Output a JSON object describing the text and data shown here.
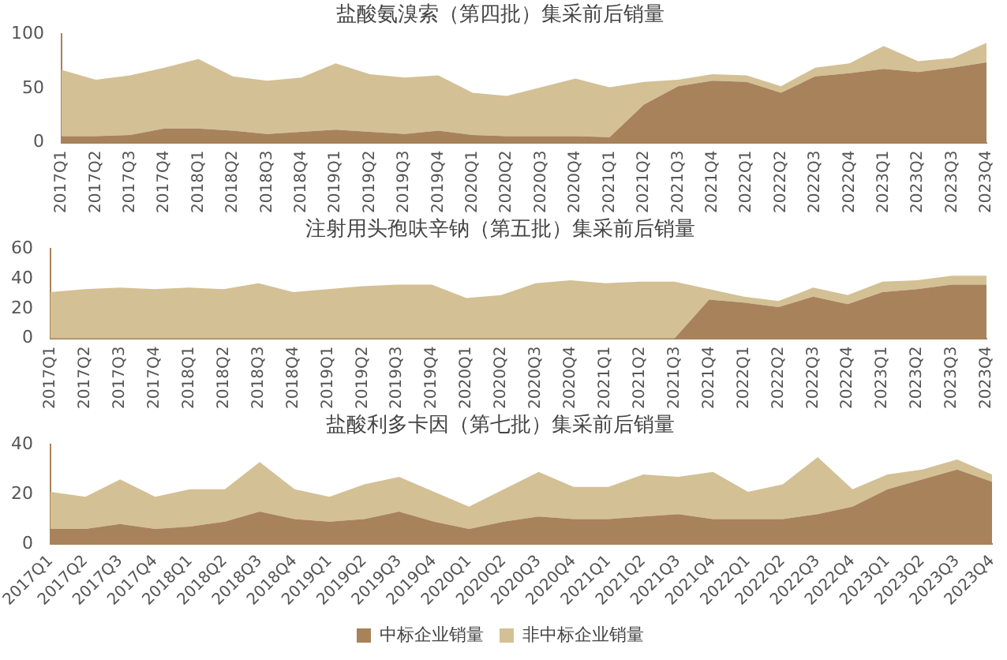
{
  "chart_data": [
    {
      "type": "area",
      "title": "盐酸氨溴索（第四批）集采前后销量",
      "stacked": true,
      "legend": false,
      "grid": false,
      "marker": "none",
      "categories": [
        "2017Q1",
        "2017Q2",
        "2017Q3",
        "2017Q4",
        "2018Q1",
        "2018Q2",
        "2018Q3",
        "2018Q4",
        "2019Q1",
        "2019Q2",
        "2019Q3",
        "2019Q4",
        "2020Q1",
        "2020Q2",
        "2020Q3",
        "2020Q4",
        "2021Q1",
        "2021Q2",
        "2021Q3",
        "2021Q4",
        "2022Q1",
        "2022Q2",
        "2022Q3",
        "2022Q4",
        "2023Q1",
        "2023Q2",
        "2023Q3",
        "2023Q4"
      ],
      "ylim": [
        0,
        100
      ],
      "yticks": [
        0,
        50,
        100
      ],
      "series": [
        {
          "color": "#a8825a",
          "values": [
            6,
            6,
            7,
            13,
            13,
            11,
            8,
            10,
            12,
            10,
            8,
            11,
            7,
            6,
            6,
            6,
            5,
            35,
            52,
            57,
            56,
            46,
            61,
            64,
            68,
            65,
            69,
            74
          ]
        },
        {
          "color": "#d4c095",
          "values": [
            61,
            52,
            55,
            56,
            64,
            50,
            49,
            50,
            61,
            53,
            52,
            51,
            39,
            37,
            45,
            53,
            46,
            21,
            6,
            6,
            6,
            6,
            8,
            9,
            21,
            10,
            9,
            18
          ]
        }
      ]
    },
    {
      "type": "area",
      "title": "注射用头孢呋辛钠（第五批）集采前后销量",
      "stacked": true,
      "legend": false,
      "grid": false,
      "marker": "none",
      "categories": [
        "2017Q1",
        "2017Q2",
        "2017Q3",
        "2017Q4",
        "2018Q1",
        "2018Q2",
        "2018Q3",
        "2018Q4",
        "2019Q1",
        "2019Q2",
        "2019Q3",
        "2019Q4",
        "2020Q1",
        "2020Q2",
        "2020Q3",
        "2020Q4",
        "2021Q1",
        "2021Q2",
        "2021Q3",
        "2021Q4",
        "2022Q1",
        "2022Q2",
        "2022Q3",
        "2022Q4",
        "2023Q1",
        "2023Q2",
        "2023Q3",
        "2023Q4"
      ],
      "ylim": [
        0,
        60
      ],
      "yticks": [
        0,
        20,
        40,
        60
      ],
      "series": [
        {
          "color": "#a8825a",
          "values": [
            0,
            0,
            0,
            0,
            0,
            0,
            0,
            0,
            0,
            0,
            0,
            0,
            0,
            0,
            0,
            0,
            0,
            0,
            0,
            26,
            24,
            21,
            28,
            23,
            31,
            33,
            36,
            36
          ]
        },
        {
          "color": "#d4c095",
          "values": [
            31,
            33,
            34,
            33,
            34,
            33,
            37,
            31,
            33,
            35,
            36,
            36,
            27,
            29,
            37,
            39,
            37,
            38,
            38,
            7,
            4,
            4,
            6,
            6,
            7,
            6,
            6,
            6
          ]
        }
      ]
    },
    {
      "type": "area",
      "title": "盐酸利多卡因（第七批）集采前后销量",
      "stacked": true,
      "legend": "bottom",
      "grid": false,
      "marker": "none",
      "categories": [
        "2017Q1",
        "2017Q2",
        "2017Q3",
        "2017Q4",
        "2018Q1",
        "2018Q2",
        "2018Q3",
        "2018Q4",
        "2019Q1",
        "2019Q2",
        "2019Q3",
        "2019Q4",
        "2020Q1",
        "2020Q2",
        "2020Q3",
        "2020Q4",
        "2021Q1",
        "2021Q2",
        "2021Q3",
        "2021Q4",
        "2022Q1",
        "2022Q2",
        "2022Q3",
        "2022Q4",
        "2023Q1",
        "2023Q2",
        "2023Q3",
        "2023Q4"
      ],
      "ylim": [
        0,
        40
      ],
      "yticks": [
        0,
        20,
        40
      ],
      "series": [
        {
          "name": "中标企业销量",
          "color": "#a8825a",
          "values": [
            6,
            6,
            8,
            6,
            7,
            9,
            13,
            10,
            9,
            10,
            13,
            9,
            6,
            9,
            11,
            10,
            10,
            11,
            12,
            10,
            10,
            10,
            12,
            15,
            22,
            26,
            30,
            25
          ]
        },
        {
          "name": "非中标企业销量",
          "color": "#d4c095",
          "values": [
            15,
            13,
            18,
            13,
            15,
            13,
            20,
            12,
            10,
            14,
            14,
            12,
            9,
            13,
            18,
            13,
            13,
            17,
            15,
            19,
            11,
            14,
            23,
            7,
            6,
            4,
            4,
            3
          ]
        }
      ]
    }
  ]
}
